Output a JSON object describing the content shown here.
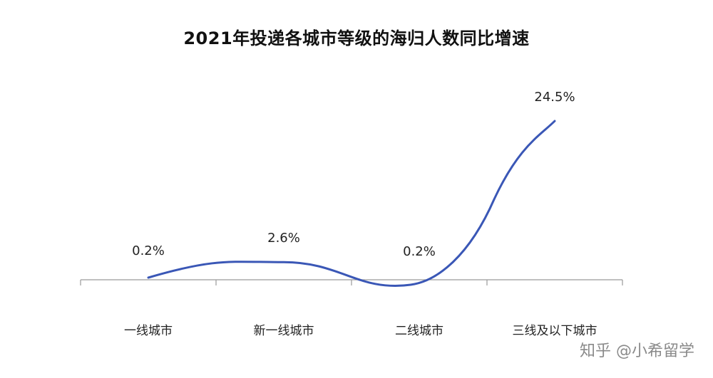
{
  "chart_data": {
    "type": "line",
    "title": "2021年投递各城市等级的海归人数同比增速",
    "categories": [
      "一线城市",
      "新一线城市",
      "二线城市",
      "三线及以下城市"
    ],
    "series": [
      {
        "values": [
          0.2,
          2.6,
          0.2,
          24.5
        ],
        "data_labels": [
          "0.2%",
          "2.6%",
          "0.2%",
          "24.5%"
        ],
        "color": "#3a57b6"
      }
    ],
    "xlabel": "",
    "ylabel": "",
    "smooth": true,
    "grid": false,
    "legend": "none",
    "axis_color": "#9a9a9a"
  },
  "watermark": "知乎 @小希留学"
}
